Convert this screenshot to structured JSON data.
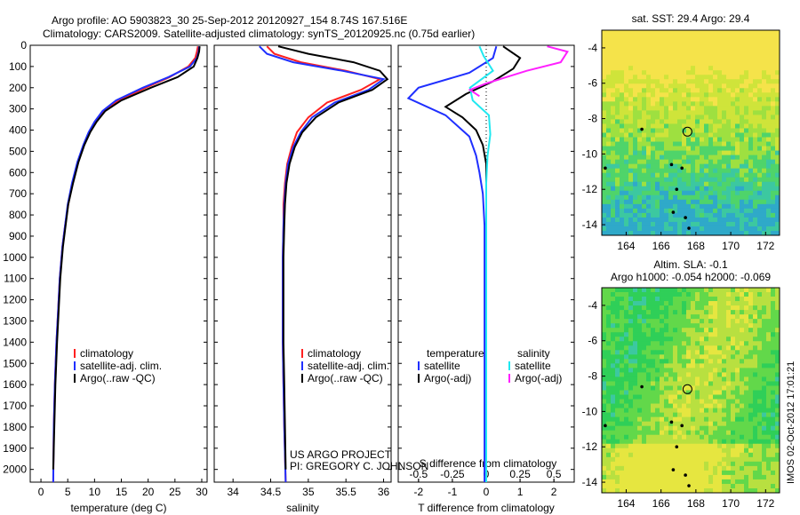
{
  "header": {
    "line1": "Argo profile: AO 5903823_30 25-Sep-2012 20120927_154 8.74S 167.516E",
    "line2": "Climatology: CARS2009. Satellite-adjusted climatology: synTS_20120925.nc (0.75d earlier)"
  },
  "footer": {
    "project": "US ARGO PROJECT",
    "pi": "PI: GREGORY C. JOHNSON",
    "stamp": "IMOS 02-Oct-2012 17:01:21"
  },
  "colors": {
    "climatology": "#ff2020",
    "satellite": "#1f2fff",
    "argo": "#000000",
    "argo_salinity": "#ff20ff",
    "sat_salinity": "#20e8f0"
  },
  "chart_data": [
    {
      "type": "line",
      "name": "temperature-profile",
      "xlabel": "temperature (deg C)",
      "ylabel": "",
      "xlim": [
        -2,
        31
      ],
      "ylim": [
        2060,
        0
      ],
      "xticks": [
        0,
        5,
        10,
        15,
        20,
        25,
        30
      ],
      "yticks": [
        0,
        100,
        200,
        300,
        400,
        500,
        600,
        700,
        800,
        900,
        1000,
        1100,
        1200,
        1300,
        1400,
        1500,
        1600,
        1700,
        1800,
        1900,
        2000
      ],
      "legend": {
        "placement": "lower-middle",
        "entries": [
          "climatology",
          "satellite-adj. clim.",
          "Argo(..raw -QC)"
        ]
      },
      "series": [
        {
          "name": "climatology",
          "color": "#ff2020",
          "x": [
            29.3,
            29.1,
            28.8,
            27.5,
            24,
            19.5,
            14.5,
            11.8,
            10.2,
            9.0,
            8.0,
            6.9,
            5.9,
            5.1,
            4.5,
            4.0,
            3.5,
            3.2,
            2.9,
            2.6,
            2.4,
            2.3
          ],
          "y": [
            5,
            30,
            60,
            100,
            150,
            200,
            260,
            310,
            360,
            410,
            470,
            550,
            650,
            750,
            850,
            950,
            1100,
            1250,
            1400,
            1600,
            1800,
            2060
          ]
        },
        {
          "name": "satellite-adj. clim.",
          "color": "#1f2fff",
          "x": [
            29.5,
            29.4,
            29.1,
            27.8,
            23.8,
            19.0,
            14.0,
            11.5,
            10.0,
            8.9,
            7.9,
            6.8,
            5.8,
            5.0,
            4.5,
            4.0,
            3.5,
            3.2,
            2.9,
            2.6,
            2.4,
            2.3
          ],
          "y": [
            5,
            30,
            60,
            100,
            150,
            200,
            260,
            310,
            360,
            410,
            470,
            550,
            650,
            750,
            850,
            950,
            1100,
            1250,
            1400,
            1600,
            1800,
            2060
          ]
        },
        {
          "name": "Argo(..raw -QC)",
          "color": "#000000",
          "x": [
            29.6,
            29.5,
            29.2,
            28.5,
            25.5,
            20.5,
            15.0,
            12.0,
            10.4,
            9.2,
            8.1,
            7.0,
            6.0,
            5.1,
            4.6,
            4.1,
            3.6,
            3.3,
            3.0,
            2.7,
            2.5,
            2.3
          ],
          "y": [
            5,
            30,
            60,
            100,
            150,
            200,
            260,
            310,
            360,
            410,
            470,
            550,
            650,
            750,
            850,
            950,
            1100,
            1250,
            1400,
            1600,
            1800,
            2000
          ]
        }
      ]
    },
    {
      "type": "line",
      "name": "salinity-profile",
      "xlabel": "salinity",
      "ylabel": "",
      "xlim": [
        33.75,
        36.1
      ],
      "ylim": [
        2060,
        0
      ],
      "xticks": [
        34,
        34.5,
        35,
        35.5,
        36
      ],
      "legend": {
        "placement": "lower-middle",
        "entries": [
          "climatology",
          "satellite-adj. clim.",
          "Argo(..raw -QC)"
        ]
      },
      "series": [
        {
          "name": "climatology",
          "color": "#ff2020",
          "x": [
            34.45,
            34.55,
            34.9,
            35.5,
            35.95,
            35.7,
            35.25,
            35.0,
            34.85,
            34.78,
            34.72,
            34.69,
            34.67,
            34.67,
            34.66,
            34.66,
            34.66,
            34.67,
            34.68,
            34.7
          ],
          "y": [
            5,
            40,
            80,
            120,
            160,
            210,
            270,
            340,
            410,
            480,
            560,
            650,
            750,
            850,
            1000,
            1200,
            1400,
            1600,
            1800,
            2060
          ]
        },
        {
          "name": "satellite-adj. clim.",
          "color": "#1f2fff",
          "x": [
            34.35,
            34.45,
            34.8,
            35.45,
            36.0,
            35.8,
            35.35,
            35.05,
            34.9,
            34.8,
            34.73,
            34.7,
            34.68,
            34.67,
            34.66,
            34.66,
            34.66,
            34.67,
            34.68,
            34.7
          ],
          "y": [
            5,
            40,
            80,
            120,
            160,
            210,
            270,
            340,
            410,
            480,
            560,
            650,
            750,
            850,
            1000,
            1200,
            1400,
            1600,
            1800,
            2060
          ]
        },
        {
          "name": "Argo(..raw -QC)",
          "color": "#000000",
          "x": [
            34.6,
            35.0,
            35.6,
            35.95,
            36.05,
            35.85,
            35.4,
            35.1,
            34.92,
            34.82,
            34.75,
            34.71,
            34.69,
            34.68,
            34.67,
            34.67,
            34.67,
            34.68,
            34.69,
            34.7
          ],
          "y": [
            5,
            40,
            80,
            120,
            160,
            210,
            270,
            340,
            410,
            480,
            560,
            650,
            750,
            850,
            1000,
            1200,
            1400,
            1600,
            1800,
            2000
          ]
        }
      ]
    },
    {
      "type": "line",
      "name": "difference-profile",
      "xlabel": "T difference from climatology",
      "x2label": "S difference from climatology",
      "xlim": [
        -2.6,
        2.6
      ],
      "x2lim": [
        -0.65,
        0.65
      ],
      "ylim": [
        2060,
        0
      ],
      "xticks": [
        -2,
        -1,
        0,
        1,
        2
      ],
      "x2ticks": [
        -0.5,
        -0.25,
        0,
        0.25,
        0.5
      ],
      "legend": {
        "placement": "lower-middle",
        "entries": [
          "temperature",
          "satellite",
          "Argo(-adj)",
          "salinity",
          "satellite",
          "Argo(-adj)"
        ]
      },
      "series": [
        {
          "name": "temperature satellite",
          "color": "#1f2fff",
          "x": [
            0.3,
            0.2,
            -0.5,
            -2.0,
            -2.3,
            -1.2,
            -0.5,
            -0.3,
            -0.2,
            -0.1,
            -0.05,
            -0.05,
            -0.05,
            -0.05,
            -0.05
          ],
          "y": [
            5,
            60,
            130,
            200,
            250,
            330,
            430,
            520,
            600,
            700,
            850,
            1100,
            1400,
            1700,
            2060
          ]
        },
        {
          "name": "temperature Argo(-adj)",
          "color": "#000000",
          "x": [
            0.5,
            1.0,
            0.8,
            0.2,
            -0.6,
            -1.2,
            -0.7,
            -0.3,
            -0.1,
            0.0,
            0.0,
            0.0,
            0.0,
            0.0,
            0.0
          ],
          "y": [
            5,
            60,
            110,
            170,
            230,
            290,
            340,
            400,
            470,
            560,
            700,
            950,
            1300,
            1700,
            2000
          ]
        },
        {
          "name": "salinity satellite",
          "color": "#20e8f0",
          "x2": [
            -0.05,
            -0.02,
            0.05,
            -0.12,
            -0.1,
            0.02,
            0.03,
            0.01,
            0.0,
            0.0,
            0.0,
            0.0,
            0.0
          ],
          "y": [
            5,
            50,
            120,
            200,
            260,
            330,
            420,
            520,
            650,
            800,
            1100,
            1500,
            2060
          ]
        },
        {
          "name": "salinity Argo(-adj)",
          "color": "#ff20ff",
          "x2": [
            0.45,
            0.6,
            0.55,
            0.3,
            0.15,
            0.0,
            -0.12,
            -0.05
          ],
          "y": [
            5,
            30,
            80,
            120,
            150,
            180,
            210,
            240
          ]
        }
      ]
    },
    {
      "type": "heatmap",
      "name": "sst-map",
      "title": "sat. SST: 29.4 Argo: 29.4",
      "xlim": [
        162.6,
        172.8
      ],
      "ylim": [
        -14.6,
        -3
      ],
      "xticks": [
        164,
        166,
        168,
        170,
        172
      ],
      "yticks": [
        -4,
        -6,
        -8,
        -10,
        -12,
        -14
      ],
      "marker": {
        "lon": 167.516,
        "lat": -8.74
      }
    },
    {
      "type": "heatmap",
      "name": "sla-map",
      "title": "Altim. SLA: -0.1",
      "subtitle": "Argo h1000: -0.054 h2000: -0.069",
      "xlim": [
        162.6,
        172.8
      ],
      "ylim": [
        -14.6,
        -3
      ],
      "xticks": [
        164,
        166,
        168,
        170,
        172
      ],
      "yticks": [
        -4,
        -6,
        -8,
        -10,
        -12,
        -14
      ],
      "marker": {
        "lon": 167.516,
        "lat": -8.74
      }
    }
  ]
}
